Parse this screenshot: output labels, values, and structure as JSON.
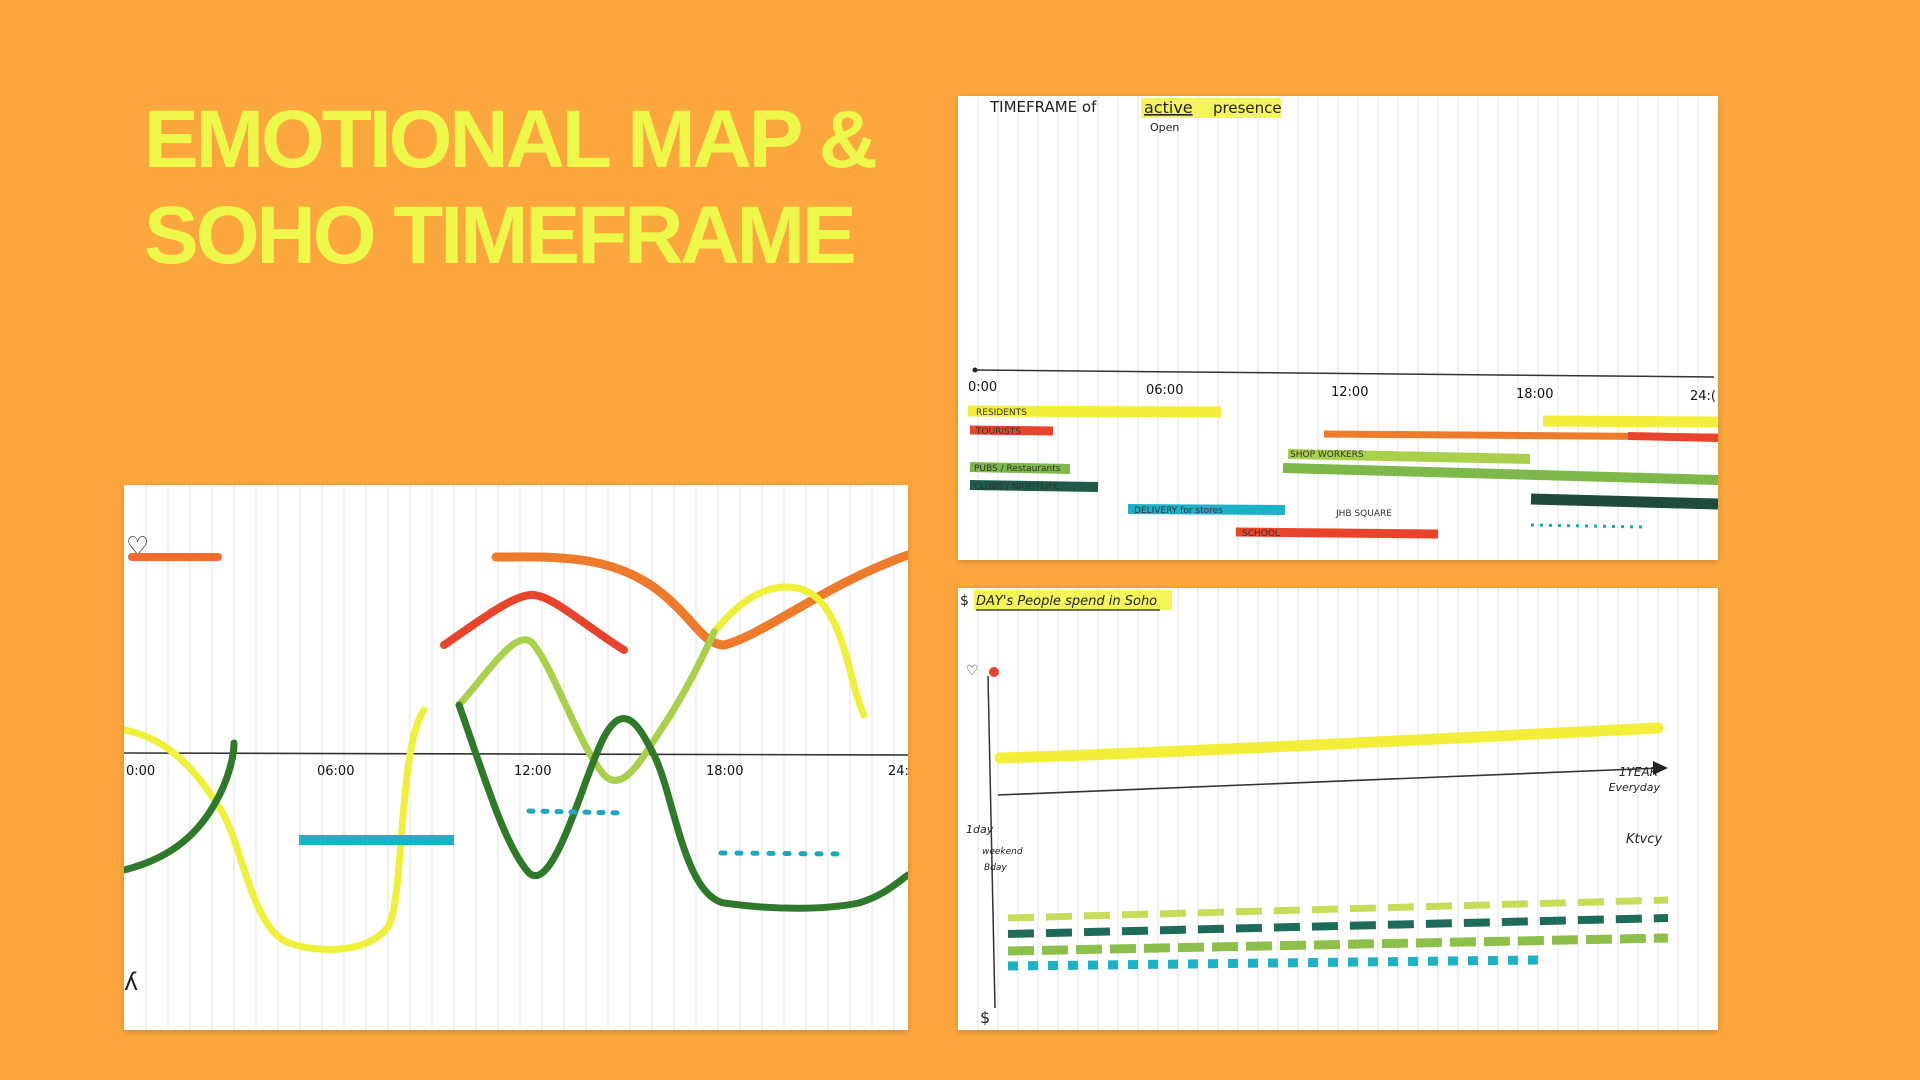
{
  "slide": {
    "title_line1": "EMOTIONAL MAP &",
    "title_line2": "SOHO TIMEFRAME",
    "background_color": "#FCA73E",
    "title_color": "#EEF84A"
  },
  "emotional_sketch": {
    "ticks": [
      "0:00",
      "06:00",
      "12:00",
      "18:00",
      "24:"
    ],
    "heart_symbol": "♡",
    "colors": [
      "#F26B2F",
      "#EEF03A",
      "#2F7A2A",
      "#A9D04A",
      "#1BB1C7",
      "#E8442C"
    ]
  },
  "timeframe_sketch": {
    "title_prefix": "TIMEFRAME of",
    "title_highlight": "active",
    "title_suffix": "presence",
    "title_note": "Open",
    "ticks": [
      "0:00",
      "06:00",
      "12:00",
      "18:00",
      "24:("
    ],
    "labels": {
      "residents": "RESIDENTS",
      "tourists": "TOURISTS",
      "pubs": "PUBS / Restaurants",
      "clubs": "CLUBS / NIGHTLIFE",
      "delivery": "DELIVERY for stores",
      "school": "SCHOOL",
      "shop_workers": "SHOP WORKERS",
      "small": "JHB SQUARE"
    }
  },
  "spend_sketch": {
    "title_symbol": "$",
    "title": "DAY's People spend in Soho",
    "heart_symbol": "♡",
    "axis_end_top": "1YEAR",
    "axis_end_bottom": "Everyday",
    "left_label_1": "1day",
    "left_label_2": "weekend",
    "left_label_3": "Bday",
    "bottom_symbol": "$",
    "right_scribble": "Ktvcy"
  }
}
